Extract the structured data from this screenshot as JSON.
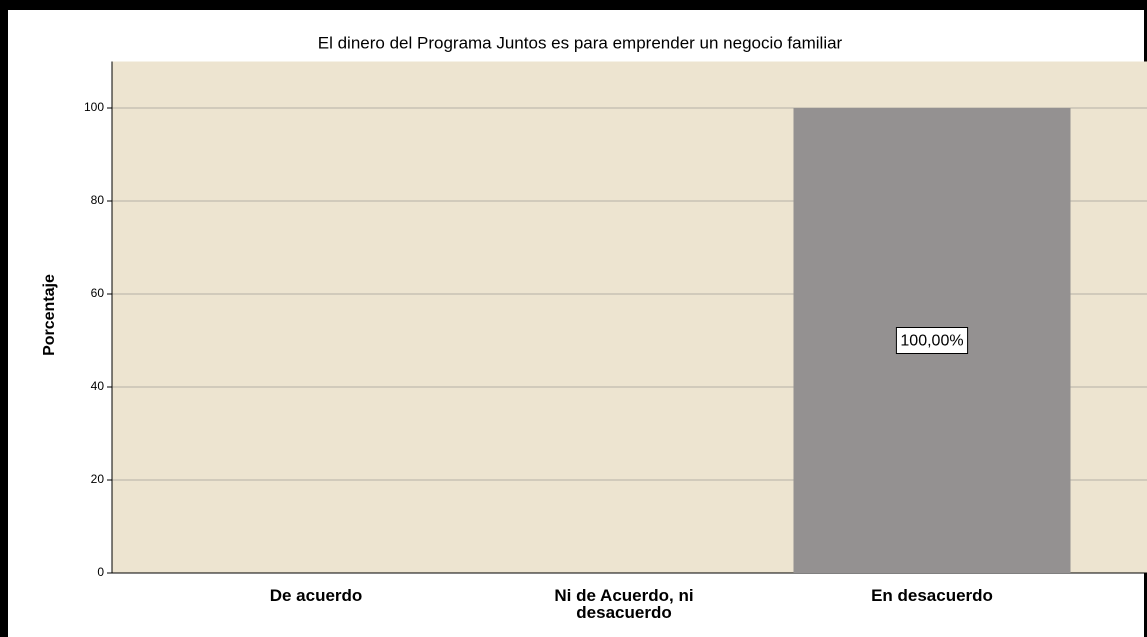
{
  "chart_data": {
    "type": "bar",
    "title": "El dinero del Programa Juntos es para emprender un negocio familiar",
    "y_label": "Porcentaje",
    "categories": [
      "De acuerdo",
      "Ni de Acuerdo, ni desacuerdo",
      "En desacuerdo"
    ],
    "values": [
      0,
      0,
      100
    ],
    "value_labels": [
      null,
      null,
      "100,00%"
    ],
    "color": "#949191",
    "ylim": [
      0,
      110
    ],
    "yticks": [
      0,
      20,
      40,
      60,
      80,
      100
    ],
    "grid": true
  }
}
